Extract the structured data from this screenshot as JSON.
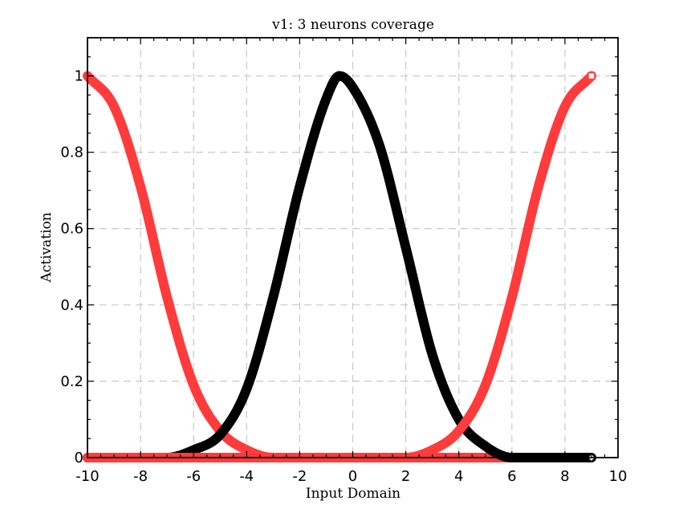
{
  "chart_data": {
    "type": "line",
    "title": "v1: 3 neurons coverage",
    "xlabel": "Input Domain",
    "ylabel": "Activation",
    "xlim": [
      -10,
      10
    ],
    "ylim": [
      0,
      1.1
    ],
    "x_ticks": [
      "-10",
      "-8",
      "-6",
      "-4",
      "-2",
      "0",
      "2",
      "4",
      "6",
      "8",
      "10"
    ],
    "y_ticks": [
      "0",
      "0.2",
      "0.4",
      "0.6",
      "0.8",
      "1"
    ],
    "grid": true,
    "x_range_plotted": [
      -10,
      9
    ],
    "series": [
      {
        "color": "#ff3b3b",
        "x": [
          -10,
          -9,
          -8,
          -7,
          -6,
          -5,
          -4,
          -3,
          -2,
          -1,
          0,
          1,
          2,
          3,
          4,
          5,
          6,
          7,
          8,
          9
        ],
        "y": [
          1.0,
          0.92,
          0.71,
          0.42,
          0.19,
          0.07,
          0.02,
          0.0,
          0.0,
          0.0,
          0.0,
          0.0,
          0.0,
          0.0,
          0.0,
          0.0,
          0.0,
          0.0,
          0.0,
          0.0
        ]
      },
      {
        "color": "#000000",
        "x": [
          -10,
          -9,
          -8,
          -7,
          -6,
          -5,
          -4,
          -3,
          -2,
          -1,
          -0.5,
          0,
          1,
          2,
          3,
          4,
          5,
          6,
          7,
          8,
          9
        ],
        "y": [
          0.0,
          0.0,
          0.0,
          0.0,
          0.02,
          0.06,
          0.18,
          0.42,
          0.71,
          0.94,
          1.0,
          0.97,
          0.82,
          0.55,
          0.27,
          0.1,
          0.03,
          0.0,
          0.0,
          0.0,
          0.0
        ]
      },
      {
        "color": "#ff3b3b",
        "x": [
          -10,
          -9,
          -8,
          -7,
          -6,
          -5,
          -4,
          -3,
          -2,
          -1,
          0,
          1,
          2,
          3,
          4,
          5,
          6,
          7,
          8,
          9
        ],
        "y": [
          0.0,
          0.0,
          0.0,
          0.0,
          0.0,
          0.0,
          0.0,
          0.0,
          0.0,
          0.0,
          0.0,
          0.0,
          0.0,
          0.02,
          0.07,
          0.19,
          0.42,
          0.71,
          0.92,
          1.0
        ]
      }
    ],
    "marker_colors": [
      "#ff3b3b",
      "#000000"
    ]
  }
}
